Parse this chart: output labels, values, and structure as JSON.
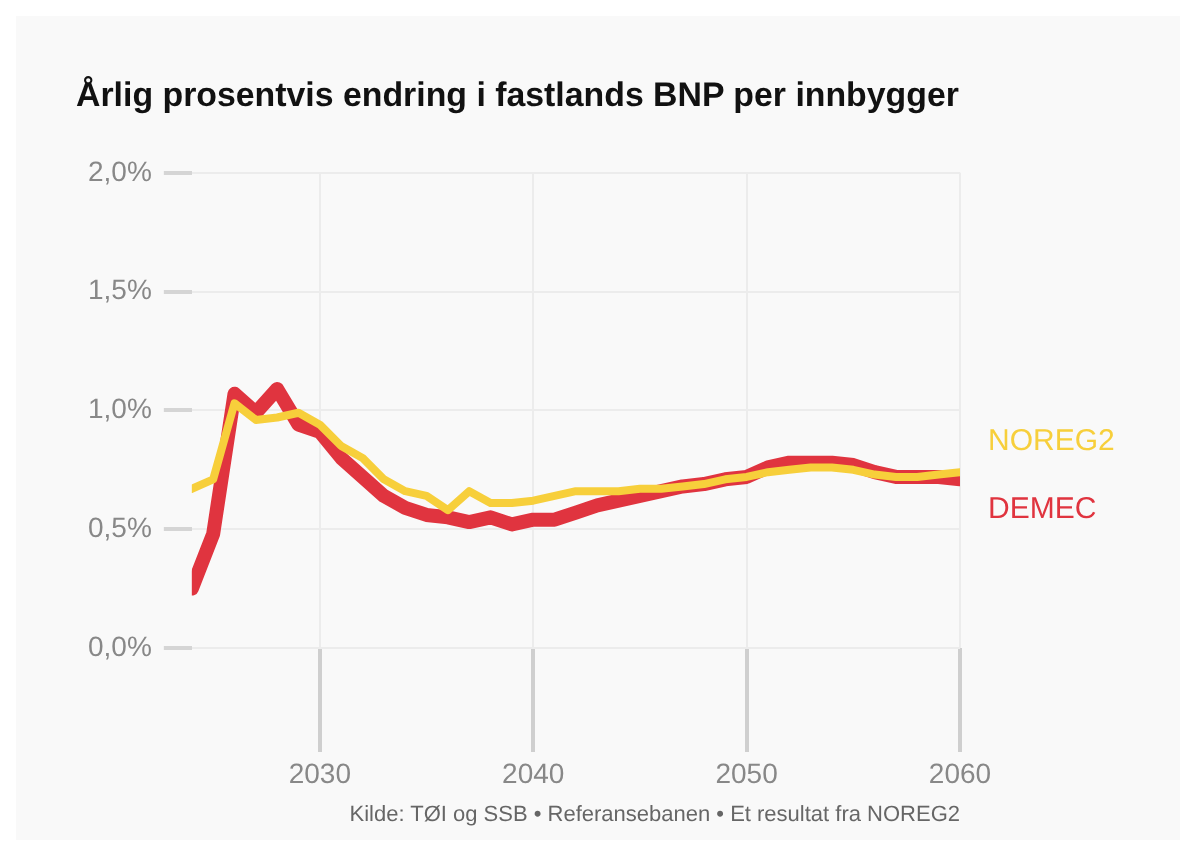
{
  "chart_data": {
    "type": "line",
    "title": "Årlig prosentvis endring i fastlands BNP per innbygger",
    "x": [
      2024,
      2025,
      2026,
      2027,
      2028,
      2029,
      2030,
      2031,
      2032,
      2033,
      2034,
      2035,
      2036,
      2037,
      2038,
      2039,
      2040,
      2041,
      2042,
      2043,
      2044,
      2045,
      2046,
      2047,
      2048,
      2049,
      2050,
      2051,
      2052,
      2053,
      2054,
      2055,
      2056,
      2057,
      2058,
      2059,
      2060
    ],
    "series": [
      {
        "name": "NOREG2",
        "color": "#f7cf3b",
        "values": [
          0.67,
          0.71,
          1.03,
          0.96,
          0.97,
          0.99,
          0.94,
          0.85,
          0.8,
          0.71,
          0.66,
          0.64,
          0.58,
          0.66,
          0.61,
          0.61,
          0.62,
          0.64,
          0.66,
          0.66,
          0.66,
          0.67,
          0.67,
          0.68,
          0.69,
          0.71,
          0.72,
          0.74,
          0.75,
          0.76,
          0.76,
          0.75,
          0.73,
          0.72,
          0.72,
          0.73,
          0.74
        ]
      },
      {
        "name": "DEMEC",
        "color": "#e0343f",
        "values": [
          0.25,
          0.48,
          1.07,
          0.99,
          1.09,
          0.94,
          0.91,
          0.8,
          0.72,
          0.64,
          0.59,
          0.56,
          0.55,
          0.53,
          0.55,
          0.52,
          0.54,
          0.54,
          0.57,
          0.6,
          0.62,
          0.64,
          0.66,
          0.68,
          0.69,
          0.71,
          0.72,
          0.76,
          0.78,
          0.78,
          0.78,
          0.77,
          0.74,
          0.72,
          0.72,
          0.72,
          0.71
        ]
      }
    ],
    "xlim": [
      2024,
      2060
    ],
    "xticks": [
      2030,
      2040,
      2050,
      2060
    ],
    "ylim": [
      0,
      2
    ],
    "yticks": [
      {
        "value": 0,
        "label": "0,0%"
      },
      {
        "value": 0.5,
        "label": "0,5%"
      },
      {
        "value": 1,
        "label": "1,0%"
      },
      {
        "value": 1.5,
        "label": "1,5%"
      },
      {
        "value": 2,
        "label": "2,0%"
      }
    ],
    "grid": true,
    "legend": false,
    "marker": "none",
    "line_style": "solid",
    "annotations": [
      "Kilde: TØI og SSB • Referansebanen • Et resultat fra NOREG2"
    ]
  }
}
